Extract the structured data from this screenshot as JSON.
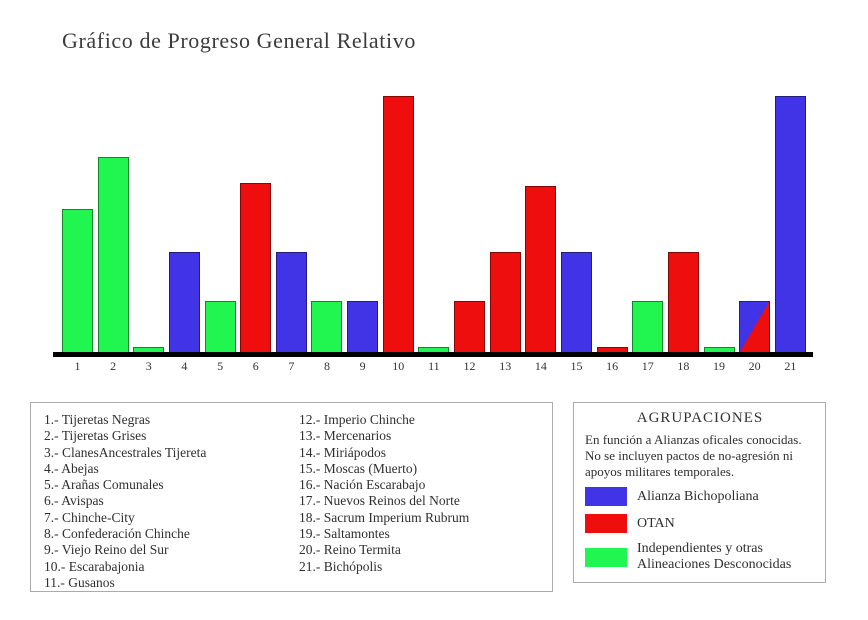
{
  "title": "Gráfico de Progreso General Relativo",
  "colors": {
    "blue": "#4134e6",
    "red": "#ee0e0e",
    "green": "#20f550",
    "axis": "#000000"
  },
  "chart_data": {
    "type": "bar",
    "title": "Gráfico de Progreso General Relativo",
    "categories": [
      "1",
      "2",
      "3",
      "4",
      "5",
      "6",
      "7",
      "8",
      "9",
      "10",
      "11",
      "12",
      "13",
      "14",
      "15",
      "16",
      "17",
      "18",
      "19",
      "20",
      "21"
    ],
    "values": [
      56,
      76,
      2,
      39,
      20,
      66,
      39,
      20,
      20,
      100,
      2,
      20,
      39,
      65,
      39,
      2,
      20,
      39,
      2,
      20,
      100
    ],
    "groups": [
      "green",
      "green",
      "green",
      "blue",
      "green",
      "red",
      "blue",
      "green",
      "blue",
      "red",
      "green",
      "red",
      "red",
      "red",
      "blue",
      "red",
      "green",
      "red",
      "green",
      "split_blue_red",
      "blue"
    ],
    "group_legend": {
      "blue": "Alianza Bichopoliana",
      "red": "OTAN",
      "green": "Independientes y otras Alineaciones Desconocidas"
    },
    "ylim": [
      0,
      100
    ],
    "xlabel": "",
    "ylabel": "",
    "grid": false,
    "note_bar_20": "diagonally split: blue upper-left, red lower-right"
  },
  "key_box": {
    "col1": [
      "1.- Tijeretas Negras",
      "2.- Tijeretas Grises",
      "3.- ClanesAncestrales Tijereta",
      "4.- Abejas",
      "5.- Arañas Comunales",
      "6.- Avispas",
      "7.- Chinche-City",
      "8.- Confederación Chinche",
      "9.- Viejo Reino del Sur",
      "10.- Escarabajonia",
      "11.- Gusanos"
    ],
    "col2": [
      "12.- Imperio Chinche",
      "13.- Mercenarios",
      "14.- Miriápodos",
      "15.- Moscas (Muerto)",
      "16.- Nación Escarabajo",
      "17.- Nuevos Reinos del Norte",
      "18.- Sacrum Imperium Rubrum",
      "19.- Saltamontes",
      "20.- Reino Termita",
      "21.- Bichópolis"
    ]
  },
  "legend": {
    "title": "AGRUPACIONES",
    "description": "En función a Alianzas oficales conocidas. No se incluyen pactos de no-agresión ni apoyos militares temporales.",
    "entries": [
      {
        "color": "blue",
        "label": "Alianza Bichopoliana"
      },
      {
        "color": "red",
        "label": "OTAN"
      },
      {
        "color": "green",
        "label": "Independientes y otras Alineaciones Desconocidas"
      }
    ]
  }
}
